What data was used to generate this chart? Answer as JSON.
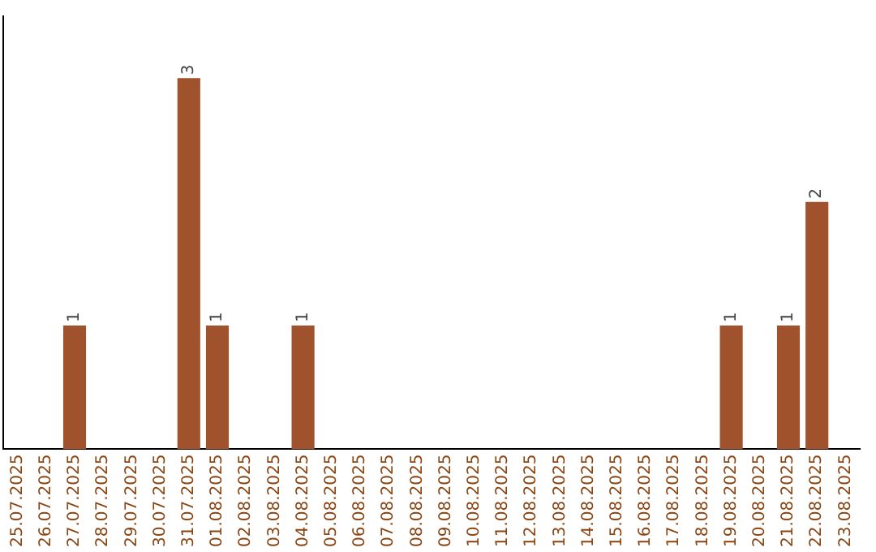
{
  "chart_data": {
    "type": "bar",
    "categories": [
      "25.07.2025",
      "26.07.2025",
      "27.07.2025",
      "28.07.2025",
      "29.07.2025",
      "30.07.2025",
      "31.07.2025",
      "01.08.2025",
      "02.08.2025",
      "03.08.2025",
      "04.08.2025",
      "05.08.2025",
      "06.08.2025",
      "07.08.2025",
      "08.08.2025",
      "09.08.2025",
      "10.08.2025",
      "11.08.2025",
      "12.08.2025",
      "13.08.2025",
      "14.08.2025",
      "15.08.2025",
      "16.08.2025",
      "17.08.2025",
      "18.08.2025",
      "19.08.2025",
      "20.08.2025",
      "21.08.2025",
      "22.08.2025",
      "23.08.2025"
    ],
    "values": [
      0,
      0,
      1,
      0,
      0,
      0,
      3,
      1,
      0,
      0,
      1,
      0,
      0,
      0,
      0,
      0,
      0,
      0,
      0,
      0,
      0,
      0,
      0,
      0,
      0,
      1,
      0,
      1,
      2,
      0
    ],
    "value_labels": [
      null,
      null,
      "1",
      null,
      null,
      null,
      "3",
      "1",
      null,
      null,
      "1",
      null,
      null,
      null,
      null,
      null,
      null,
      null,
      null,
      null,
      null,
      null,
      null,
      null,
      null,
      "1",
      null,
      "1",
      "2",
      null
    ],
    "color": "#a0522d",
    "tick_labels": "x",
    "grid": false,
    "legend": false
  }
}
